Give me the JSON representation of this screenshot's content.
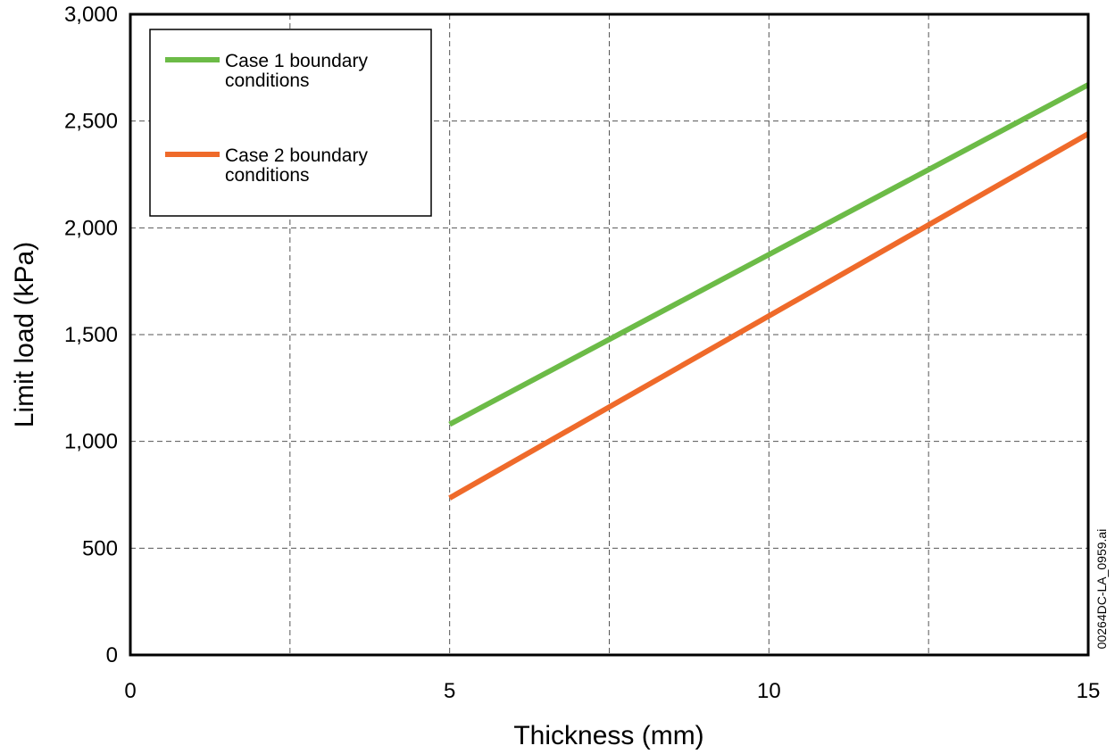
{
  "chart_data": {
    "type": "line",
    "xlabel": "Thickness (mm)",
    "ylabel": "Limit load (kPa)",
    "xlim": [
      0,
      15
    ],
    "ylim": [
      0,
      3000
    ],
    "x_ticks": [
      0,
      5,
      10,
      15
    ],
    "x_tick_labels": [
      "0",
      "5",
      "10",
      "15"
    ],
    "y_ticks": [
      0,
      500,
      1000,
      1500,
      2000,
      2500,
      3000
    ],
    "y_tick_labels": [
      "0",
      "500",
      "1,000",
      "1,500",
      "2,000",
      "2,500",
      "3,000"
    ],
    "x_grid": [
      2.5,
      5,
      7.5,
      10,
      12.5
    ],
    "y_grid": [
      500,
      1000,
      1500,
      2000,
      2500
    ],
    "grid": true,
    "legend_position": "top-left",
    "series": [
      {
        "name": "Case 1 boundary conditions",
        "legend_lines": [
          "Case 1 boundary",
          "conditions"
        ],
        "color": "#6cbb47",
        "x": [
          5,
          15
        ],
        "y": [
          1080,
          2670
        ]
      },
      {
        "name": "Case 2 boundary conditions",
        "legend_lines": [
          "Case 2 boundary",
          "conditions"
        ],
        "color": "#ef6a2a",
        "x": [
          5,
          15
        ],
        "y": [
          735,
          2440
        ]
      }
    ],
    "annotation": "00264DC-LA_0959.ai"
  }
}
